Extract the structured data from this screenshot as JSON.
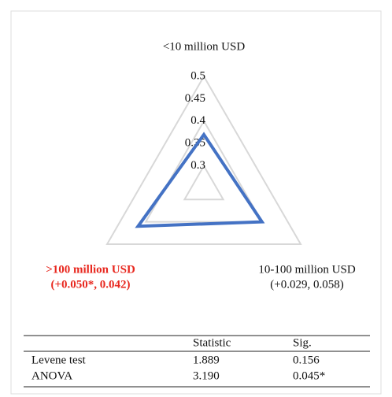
{
  "chart_data": {
    "type": "radar",
    "categories": [
      "<10 million USD",
      "10-100 million USD",
      ">100 million USD"
    ],
    "annotations": [
      "(+0.029, 0.058)",
      "(+0.050*, 0.042)"
    ],
    "series": [
      {
        "color": "#4472c4",
        "values": [
          0.37,
          0.4,
          0.42
        ]
      }
    ],
    "ylim": [
      0.25,
      0.5
    ],
    "yticks": [
      0.3,
      0.35,
      0.4,
      0.45,
      0.5
    ]
  },
  "table": {
    "header": [
      "Statistic",
      "Sig."
    ],
    "rows": [
      [
        "Levene test",
        "1.889",
        "0.156"
      ],
      [
        "ANOVA",
        "3.190",
        "0.045*"
      ]
    ]
  }
}
